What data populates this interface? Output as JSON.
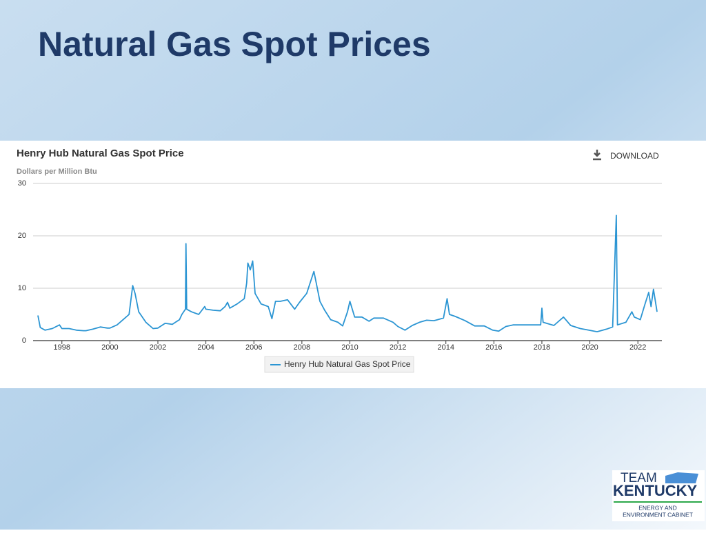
{
  "slide": {
    "title": "Natural Gas Spot Prices",
    "logo": [
      "TEAM",
      "KENTUCKY",
      "ENERGY AND",
      "ENVIRONMENT CABINET"
    ]
  },
  "download": "DOWNLOAD",
  "chart_data": {
    "type": "line",
    "title": "Henry Hub Natural Gas Spot Price",
    "subtitle": "Dollars per Million Btu",
    "x": [
      1997.0,
      1997.1,
      1997.3,
      1997.6,
      1997.9,
      1998.0,
      1998.3,
      1998.6,
      1998.9,
      1999.0,
      1999.3,
      1999.6,
      1999.9,
      2000.0,
      2000.3,
      2000.6,
      2000.8,
      2000.95,
      2001.05,
      2001.2,
      2001.5,
      2001.8,
      2002.0,
      2002.3,
      2002.6,
      2002.9,
      2003.0,
      2003.15,
      2003.17,
      2003.2,
      2003.4,
      2003.7,
      2003.95,
      2004.0,
      2004.3,
      2004.6,
      2004.8,
      2004.9,
      2005.0,
      2005.3,
      2005.6,
      2005.7,
      2005.75,
      2005.85,
      2005.95,
      2006.05,
      2006.3,
      2006.6,
      2006.75,
      2006.9,
      2007.1,
      2007.4,
      2007.7,
      2007.9,
      2008.2,
      2008.45,
      2008.5,
      2008.6,
      2008.75,
      2008.95,
      2009.2,
      2009.5,
      2009.7,
      2009.9,
      2010.0,
      2010.2,
      2010.5,
      2010.8,
      2011.0,
      2011.4,
      2011.8,
      2012.0,
      2012.3,
      2012.6,
      2012.9,
      2013.2,
      2013.5,
      2013.9,
      2014.05,
      2014.15,
      2014.4,
      2014.8,
      2015.2,
      2015.6,
      2015.95,
      2016.2,
      2016.5,
      2016.8,
      2017.1,
      2017.5,
      2017.95,
      2018.0,
      2018.05,
      2018.5,
      2018.9,
      2019.2,
      2019.6,
      2019.95,
      2020.3,
      2020.7,
      2020.95,
      2021.1,
      2021.15,
      2021.5,
      2021.75,
      2021.85,
      2022.1,
      2022.3,
      2022.45,
      2022.55,
      2022.65,
      2022.8
    ],
    "series": [
      {
        "name": "Henry Hub Natural Gas Spot Price",
        "color": "#2b95d3",
        "values": [
          4.8,
          2.5,
          2.0,
          2.3,
          3.0,
          2.3,
          2.3,
          2.0,
          1.9,
          1.9,
          2.2,
          2.6,
          2.4,
          2.4,
          3.0,
          4.2,
          5.0,
          10.5,
          9.0,
          5.5,
          3.5,
          2.3,
          2.4,
          3.3,
          3.1,
          4.0,
          5.0,
          6.0,
          18.5,
          6.0,
          5.5,
          5.0,
          6.5,
          6.0,
          5.8,
          5.7,
          6.5,
          7.3,
          6.2,
          7.0,
          8.0,
          11.0,
          14.8,
          13.5,
          15.2,
          9.0,
          7.0,
          6.5,
          4.2,
          7.5,
          7.5,
          7.8,
          6.0,
          7.3,
          9.0,
          12.5,
          13.2,
          11.0,
          7.5,
          5.8,
          4.0,
          3.5,
          2.8,
          5.5,
          7.5,
          4.5,
          4.5,
          3.7,
          4.3,
          4.3,
          3.5,
          2.7,
          2.0,
          2.9,
          3.5,
          3.9,
          3.8,
          4.3,
          8.0,
          5.0,
          4.6,
          3.8,
          2.8,
          2.8,
          2.0,
          1.8,
          2.7,
          3.0,
          3.0,
          3.0,
          3.0,
          6.2,
          3.5,
          2.9,
          4.5,
          2.9,
          2.3,
          2.0,
          1.7,
          2.2,
          2.6,
          23.9,
          3.0,
          3.5,
          5.5,
          4.5,
          4.0,
          7.0,
          9.2,
          6.5,
          9.8,
          5.5
        ]
      }
    ],
    "xlim": [
      1996.8,
      2023.0
    ],
    "xticks": [
      1998,
      2000,
      2002,
      2004,
      2006,
      2008,
      2010,
      2012,
      2014,
      2016,
      2018,
      2020,
      2022
    ],
    "ylim": [
      0,
      30
    ],
    "yticks": [
      0,
      10,
      20,
      30
    ],
    "grid": true
  }
}
